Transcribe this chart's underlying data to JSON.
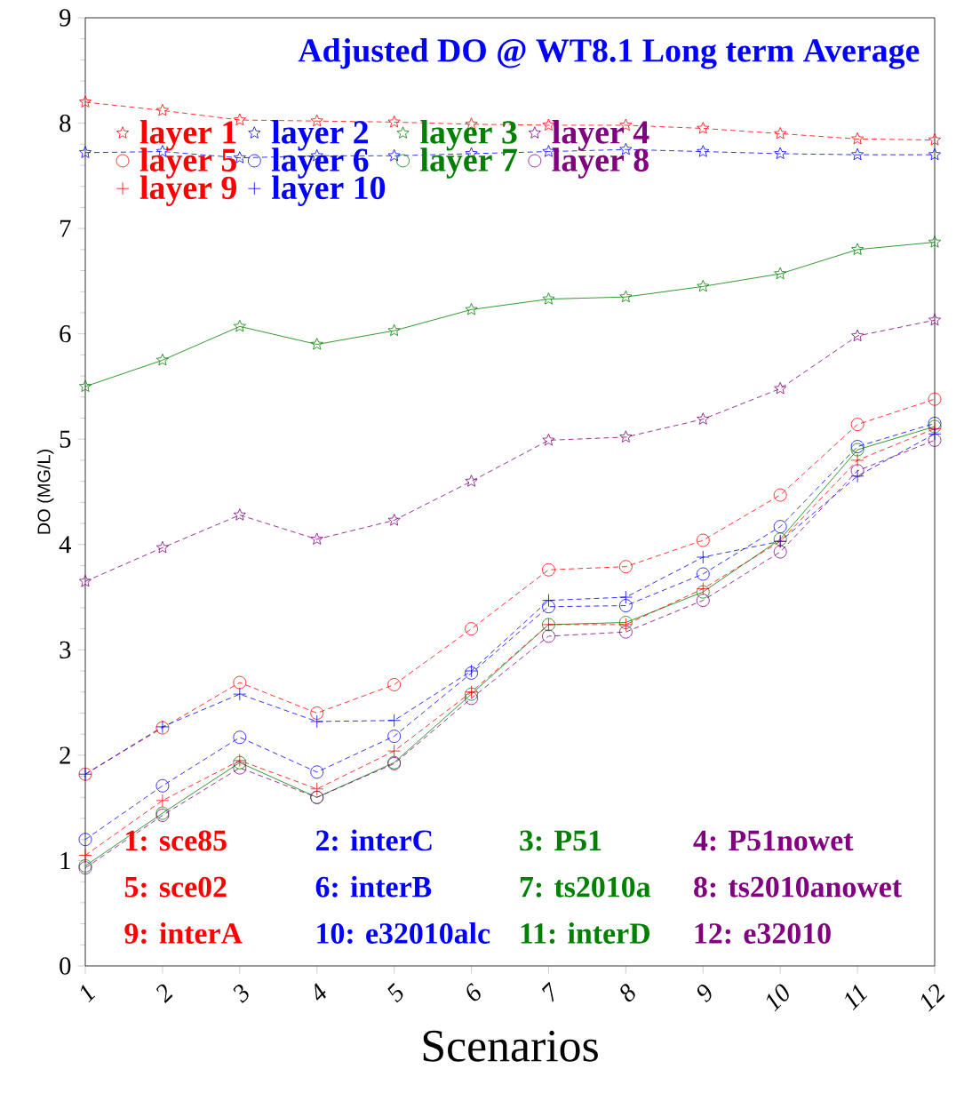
{
  "chart_data": {
    "type": "line",
    "title": "Adjusted DO @ WT8.1  Long term Average",
    "xlabel": "Scenarios",
    "ylabel": "DO (MG/L)",
    "categories": [
      "1",
      "2",
      "3",
      "4",
      "5",
      "6",
      "7",
      "8",
      "9",
      "10",
      "11",
      "12"
    ],
    "ylim": [
      0,
      9
    ],
    "yticks": [
      0,
      1,
      2,
      3,
      4,
      5,
      6,
      7,
      8,
      9
    ],
    "legend": "top left",
    "grid": false,
    "series": [
      {
        "name": "layer 1",
        "color": "#ff0000",
        "marker": "star",
        "line_style": "dashed",
        "values": [
          8.2,
          8.12,
          8.03,
          8.02,
          8.01,
          7.99,
          7.98,
          7.98,
          7.95,
          7.9,
          7.85,
          7.84
        ]
      },
      {
        "name": "layer 2",
        "color": "#0000ff",
        "marker": "star",
        "line_style": "dashed",
        "values": [
          7.72,
          7.73,
          7.67,
          7.69,
          7.69,
          7.71,
          7.73,
          7.75,
          7.73,
          7.71,
          7.7,
          7.7
        ]
      },
      {
        "name": "layer 3",
        "color": "#008000",
        "marker": "star",
        "line_style": "solid",
        "values": [
          5.5,
          5.75,
          6.07,
          5.9,
          6.03,
          6.23,
          6.33,
          6.35,
          6.45,
          6.57,
          6.8,
          6.87
        ]
      },
      {
        "name": "layer 4",
        "color": "#800080",
        "marker": "star",
        "line_style": "dashed",
        "values": [
          3.65,
          3.97,
          4.28,
          4.05,
          4.23,
          4.6,
          4.99,
          5.02,
          5.19,
          5.48,
          5.98,
          6.13
        ]
      },
      {
        "name": "layer 5",
        "color": "#ff0000",
        "marker": "circle",
        "line_style": "dashed",
        "values": [
          1.82,
          2.26,
          2.69,
          2.4,
          2.67,
          3.2,
          3.76,
          3.79,
          4.04,
          4.47,
          5.14,
          5.38
        ]
      },
      {
        "name": "layer 6",
        "color": "#0000ff",
        "marker": "circle",
        "line_style": "dashed",
        "values": [
          1.2,
          1.71,
          2.17,
          1.84,
          2.18,
          2.78,
          3.41,
          3.42,
          3.72,
          4.17,
          4.93,
          5.15
        ]
      },
      {
        "name": "layer 7",
        "color": "#008000",
        "marker": "circle",
        "line_style": "solid",
        "values": [
          0.95,
          1.45,
          1.93,
          1.6,
          1.93,
          2.58,
          3.24,
          3.26,
          3.55,
          4.05,
          4.9,
          5.12
        ]
      },
      {
        "name": "layer 8",
        "color": "#800080",
        "marker": "circle",
        "line_style": "dashed",
        "values": [
          0.93,
          1.43,
          1.88,
          1.6,
          1.92,
          2.54,
          3.13,
          3.17,
          3.47,
          3.93,
          4.7,
          4.99
        ]
      },
      {
        "name": "layer 9",
        "color": "#ff0000",
        "marker": "cross",
        "line_style": "dashed",
        "values": [
          1.05,
          1.57,
          1.95,
          1.68,
          2.04,
          2.6,
          3.24,
          3.24,
          3.58,
          4.03,
          4.8,
          5.1
        ]
      },
      {
        "name": "layer 10",
        "color": "#0000ff",
        "marker": "cross",
        "line_style": "dashed",
        "values": [
          1.82,
          2.27,
          2.58,
          2.32,
          2.33,
          2.8,
          3.47,
          3.5,
          3.88,
          4.03,
          4.65,
          5.05
        ]
      }
    ],
    "annotations": [
      "1:  sce85",
      "2:  interC",
      "3:  P51",
      "4:  P51nowet",
      "5:  sce02",
      "6:  interB",
      "7:  ts2010a",
      "8:  ts2010anowet",
      "9:  interA",
      "10:  e32010alc",
      "11:  interD",
      "12:  e32010"
    ]
  }
}
